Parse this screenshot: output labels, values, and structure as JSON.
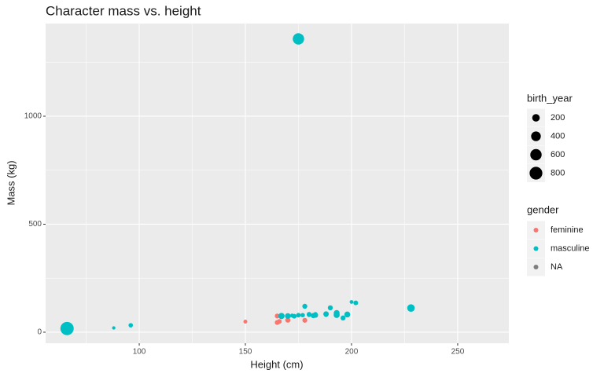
{
  "chart_data": {
    "type": "scatter",
    "title": "Character mass vs. height",
    "x_label": "Height (cm)",
    "y_label": "Mass (kg)",
    "xlim": [
      55.9,
      274.1
    ],
    "ylim": [
      -51,
      1429
    ],
    "xticks": [
      100,
      150,
      200,
      250
    ],
    "yticks": [
      0,
      500,
      1000
    ],
    "grid": true,
    "size_legend": {
      "title": "birth_year",
      "breaks": [
        200,
        400,
        600,
        800
      ]
    },
    "color_legend_title": "gender",
    "series": [
      {
        "name": "feminine",
        "color": "#F8766D",
        "x": [
          150,
          165,
          165,
          170,
          166,
          178
        ],
        "values": [
          49,
          75,
          45,
          56.2,
          50,
          55
        ],
        "sizes": [
          19,
          47,
          46,
          58,
          40,
          48
        ]
      },
      {
        "name": "masculine",
        "color": "#00BFC4",
        "x": [
          66,
          175,
          88,
          96,
          172,
          167,
          202,
          178,
          183,
          182,
          188,
          228,
          180,
          183,
          200,
          190,
          177,
          180,
          170,
          193,
          183,
          188,
          198,
          193,
          170,
          188,
          173,
          175,
          196
        ],
        "values": [
          17,
          1358,
          20,
          32,
          77,
          75,
          136,
          120,
          84,
          77,
          84,
          112,
          80,
          78.2,
          140,
          113,
          79,
          83,
          75,
          89,
          79,
          84,
          82,
          80,
          77,
          80,
          74,
          79,
          66
        ],
        "sizes": [
          896,
          600,
          8,
          33,
          19,
          112,
          41.9,
          52,
          24,
          57,
          41.9,
          200,
          29,
          31.5,
          15,
          53,
          31,
          41,
          82,
          92,
          66,
          72,
          92,
          102,
          21,
          22,
          44,
          37,
          52
        ]
      },
      {
        "name": "NA",
        "color": "#7F7F7F",
        "x": [],
        "values": [],
        "sizes": []
      }
    ]
  }
}
